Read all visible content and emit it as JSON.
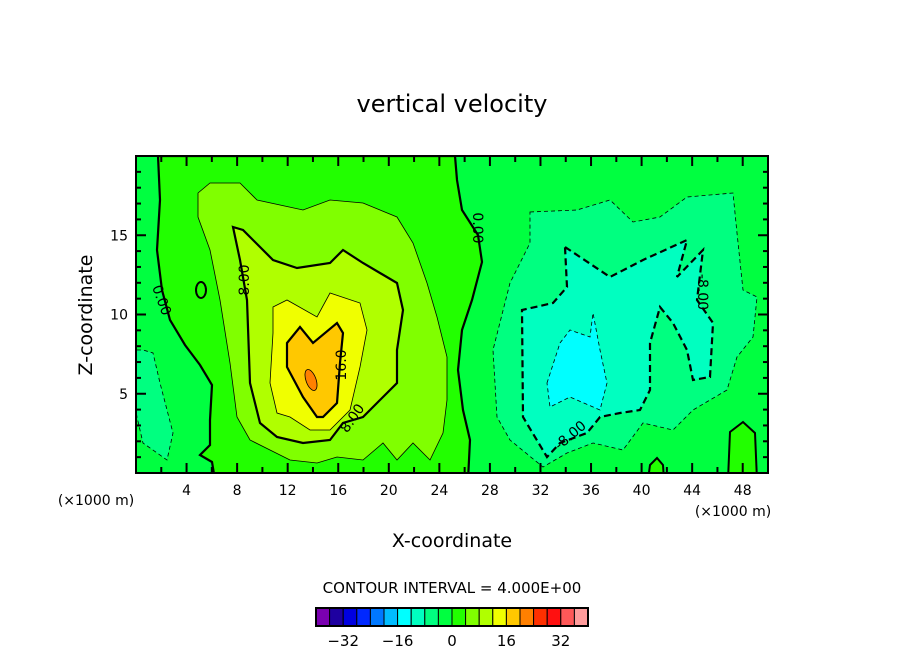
{
  "chart_data": {
    "type": "heatmap",
    "subtype": "filled-contour",
    "title": "vertical velocity",
    "xlabel": "X-coordinate",
    "ylabel": "Z-coordinate",
    "x_unit_label": "(×1000 m)",
    "y_unit_label": "(×1000 m)",
    "xlim": [
      0,
      50
    ],
    "ylim": [
      0,
      20
    ],
    "xticks": [
      4,
      8,
      12,
      16,
      20,
      24,
      28,
      32,
      36,
      40,
      44,
      48
    ],
    "yticks": [
      5,
      10,
      15
    ],
    "contour_interval_text": "CONTOUR INTERVAL = 4.000E+00",
    "contour_interval": 4,
    "contour_labels": [
      "0.00",
      "8.00",
      "16.0",
      "8.00",
      "0.00",
      "-8.00",
      "-8.00"
    ],
    "colorbar": {
      "tick_labels": [
        "−32",
        "−16",
        "0",
        "16",
        "32"
      ],
      "colors": [
        "#7a00b0",
        "#1e00a0",
        "#0000e0",
        "#0028ff",
        "#0078ff",
        "#00bcff",
        "#00ffff",
        "#00ffc0",
        "#00ff80",
        "#00ff40",
        "#22ff00",
        "#80ff00",
        "#b0ff00",
        "#f0ff00",
        "#ffc800",
        "#ff8000",
        "#ff3000",
        "#ff1010",
        "#ff5858",
        "#ff9c9c"
      ]
    },
    "features": {
      "max_updraft_approx": 20,
      "max_updraft_location_x": 14,
      "max_updraft_location_z": 6,
      "max_downdraft_approx": -12,
      "max_downdraft_location_x": 35,
      "max_downdraft_location_z": 7
    }
  }
}
